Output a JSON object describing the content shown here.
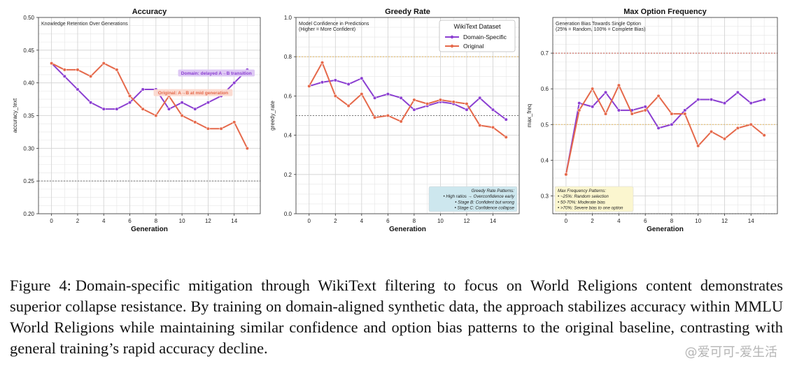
{
  "figure": {
    "caption_label": "Figure 4:",
    "caption_text": "Domain-specific mitigation through WikiText filtering to focus on World Religions content demonstrates superior collapse resistance. By training on domain-aligned synthetic data, the approach stabilizes accuracy within MMLU World Religions while maintaining similar confidence and option bias patterns to the original baseline, contrasting with general training’s rapid accuracy decline.",
    "watermark": "@爱可可-爱生活"
  },
  "colors": {
    "domain": "#8b3fd1",
    "original": "#e5694b",
    "grid": "#e6e6e6",
    "ref_gray": "#666666",
    "ref_orange": "#e8b24a",
    "ref_red": "#c0392b",
    "legend_bg": "#ffffff",
    "note_blue": "#cde7ee",
    "note_yellow": "#fbf6cf"
  },
  "chart_data": [
    {
      "type": "line",
      "title": "Accuracy",
      "subtitle": "Knowledge Retention Over Generations",
      "xlabel": "Generation",
      "ylabel": "accuracy_text",
      "xlim": [
        -1,
        16
      ],
      "ylim": [
        0.2,
        0.5
      ],
      "xticks": [
        0,
        2,
        4,
        6,
        8,
        10,
        12,
        14
      ],
      "yticks": [
        0.2,
        0.25,
        0.3,
        0.35,
        0.4,
        0.45,
        0.5
      ],
      "ytick_labels": [
        "0.20",
        "0.25",
        "0.30",
        "0.35",
        "0.40",
        "0.45",
        "0.50"
      ],
      "grid": true,
      "x": [
        0,
        1,
        2,
        3,
        4,
        5,
        6,
        7,
        8,
        9,
        10,
        11,
        12,
        13,
        14,
        15
      ],
      "series": [
        {
          "key": "domain",
          "values": [
            0.43,
            0.41,
            0.39,
            0.37,
            0.36,
            0.36,
            0.37,
            0.39,
            0.39,
            0.36,
            0.37,
            0.36,
            0.37,
            0.38,
            0.4,
            0.42
          ]
        },
        {
          "key": "original",
          "values": [
            0.43,
            0.42,
            0.42,
            0.41,
            0.43,
            0.42,
            0.38,
            0.36,
            0.35,
            0.38,
            0.35,
            0.34,
            0.33,
            0.33,
            0.34,
            0.3
          ]
        }
      ],
      "reference_lines": [
        {
          "y": 0.25,
          "style": "gray"
        }
      ],
      "annotations": [
        {
          "text": "Domain: delayed A→B transition",
          "series": "domain"
        },
        {
          "text": "Original: A→B at mid generation",
          "series": "original"
        }
      ]
    },
    {
      "type": "line",
      "title": "Greedy Rate",
      "subtitle": "Model Confidence in Predictions",
      "subtitle2": "(Higher = More Confident)",
      "xlabel": "Generation",
      "ylabel": "greedy_rate",
      "xlim": [
        -1,
        16
      ],
      "ylim": [
        0.0,
        1.0
      ],
      "xticks": [
        0,
        2,
        4,
        6,
        8,
        10,
        12,
        14
      ],
      "yticks": [
        0.0,
        0.2,
        0.4,
        0.6,
        0.8,
        1.0
      ],
      "ytick_labels": [
        "0.0",
        "0.2",
        "0.4",
        "0.6",
        "0.8",
        "1.0"
      ],
      "grid": true,
      "x": [
        0,
        1,
        2,
        3,
        4,
        5,
        6,
        7,
        8,
        9,
        10,
        11,
        12,
        13,
        14,
        15
      ],
      "series": [
        {
          "key": "domain",
          "values": [
            0.65,
            0.67,
            0.68,
            0.66,
            0.69,
            0.59,
            0.61,
            0.59,
            0.53,
            0.55,
            0.57,
            0.56,
            0.53,
            0.59,
            0.53,
            0.48
          ]
        },
        {
          "key": "original",
          "values": [
            0.65,
            0.77,
            0.6,
            0.55,
            0.61,
            0.49,
            0.5,
            0.47,
            0.58,
            0.56,
            0.58,
            0.57,
            0.56,
            0.45,
            0.44,
            0.39
          ]
        }
      ],
      "reference_lines": [
        {
          "y": 0.8,
          "style": "orange"
        },
        {
          "y": 0.5,
          "style": "gray"
        }
      ],
      "legend": {
        "title": "WikiText Dataset",
        "position": "top-right",
        "entries": [
          {
            "key": "domain",
            "label": "Domain-Specific"
          },
          {
            "key": "original",
            "label": "Original"
          }
        ]
      },
      "note": {
        "position": "bottom-right",
        "color": "blue",
        "lines": [
          "Greedy Rate Patterns:",
          "• High ratios → Overconfidence early",
          "• Stage B: Confident but wrong",
          "• Stage C: Confidence collapse"
        ]
      }
    },
    {
      "type": "line",
      "title": "Max Option Frequency",
      "subtitle": "Generation Bias Towards Single Option",
      "subtitle2": "(25% = Random, 100% = Complete Bias)",
      "xlabel": "Generation",
      "ylabel": "max_freq",
      "xlim": [
        -1,
        16
      ],
      "ylim": [
        0.25,
        0.8
      ],
      "xticks": [
        0,
        2,
        4,
        6,
        8,
        10,
        12,
        14
      ],
      "yticks": [
        0.3,
        0.4,
        0.5,
        0.6,
        0.7
      ],
      "ytick_labels": [
        "0.3",
        "0.4",
        "0.5",
        "0.6",
        "0.7"
      ],
      "grid": true,
      "x": [
        0,
        1,
        2,
        3,
        4,
        5,
        6,
        7,
        8,
        9,
        10,
        11,
        12,
        13,
        14,
        15
      ],
      "series": [
        {
          "key": "domain",
          "values": [
            0.36,
            0.56,
            0.55,
            0.59,
            0.54,
            0.54,
            0.55,
            0.49,
            0.5,
            0.54,
            0.57,
            0.57,
            0.56,
            0.59,
            0.56,
            0.57
          ]
        },
        {
          "key": "original",
          "values": [
            0.36,
            0.54,
            0.6,
            0.53,
            0.61,
            0.53,
            0.54,
            0.58,
            0.53,
            0.53,
            0.44,
            0.48,
            0.46,
            0.49,
            0.5,
            0.47
          ]
        }
      ],
      "reference_lines": [
        {
          "y": 0.7,
          "style": "red"
        },
        {
          "y": 0.5,
          "style": "orange"
        },
        {
          "y": 0.25,
          "style": "gray"
        }
      ],
      "note": {
        "position": "bottom-left",
        "color": "yellow",
        "lines": [
          "Max Frequency Patterns:",
          "• ~25%: Random selection",
          "• 50-70%: Moderate bias",
          "• >70%: Severe bias to one option"
        ]
      }
    }
  ]
}
